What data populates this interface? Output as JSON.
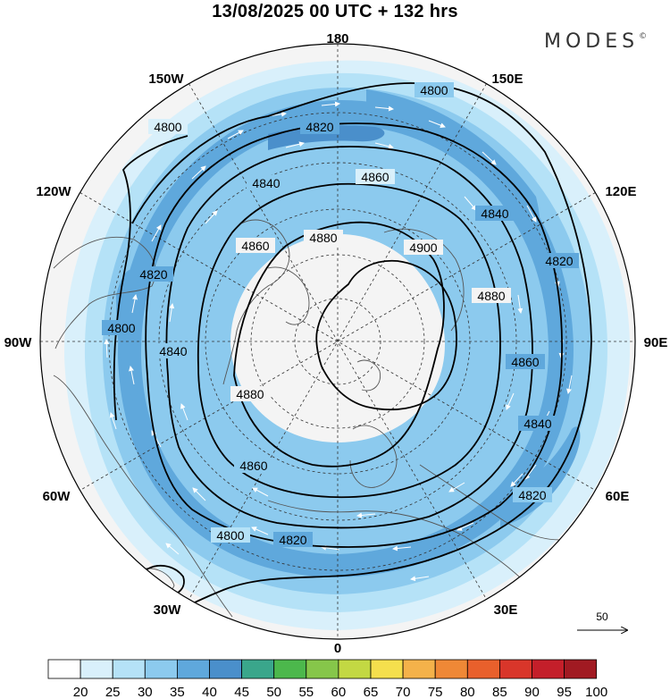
{
  "header": {
    "title": "13/08/2025  00 UTC  + 132 hrs",
    "brand": "MODES",
    "brand_mark": "©"
  },
  "map": {
    "projection": "north-polar-stereographic",
    "longitude_labels": [
      "180",
      "150E",
      "120E",
      "90E",
      "60E",
      "30E",
      "0",
      "30W",
      "60W",
      "90W",
      "120W",
      "150W"
    ],
    "contour_labels": [
      "4800",
      "4820",
      "4840",
      "4860",
      "4880",
      "4900"
    ],
    "colors": {
      "land_edge": "#555555",
      "contour": "#000000",
      "ocean": "#f4f4f4"
    }
  },
  "colorbar": {
    "ticks": [
      "20",
      "25",
      "30",
      "35",
      "40",
      "45",
      "50",
      "55",
      "60",
      "65",
      "70",
      "75",
      "80",
      "85",
      "90",
      "95",
      "100"
    ],
    "colors": [
      "#ffffff",
      "#d9f0fb",
      "#b5e2f7",
      "#8ccaee",
      "#5fa8dc",
      "#4a8fcb",
      "#3aa68b",
      "#4cb84c",
      "#86c64a",
      "#c3d843",
      "#f5df4d",
      "#f4b24a",
      "#ef8836",
      "#e8602c",
      "#d9362a",
      "#c41f2a",
      "#a11a22"
    ]
  },
  "reference_vector": {
    "value": "50"
  }
}
